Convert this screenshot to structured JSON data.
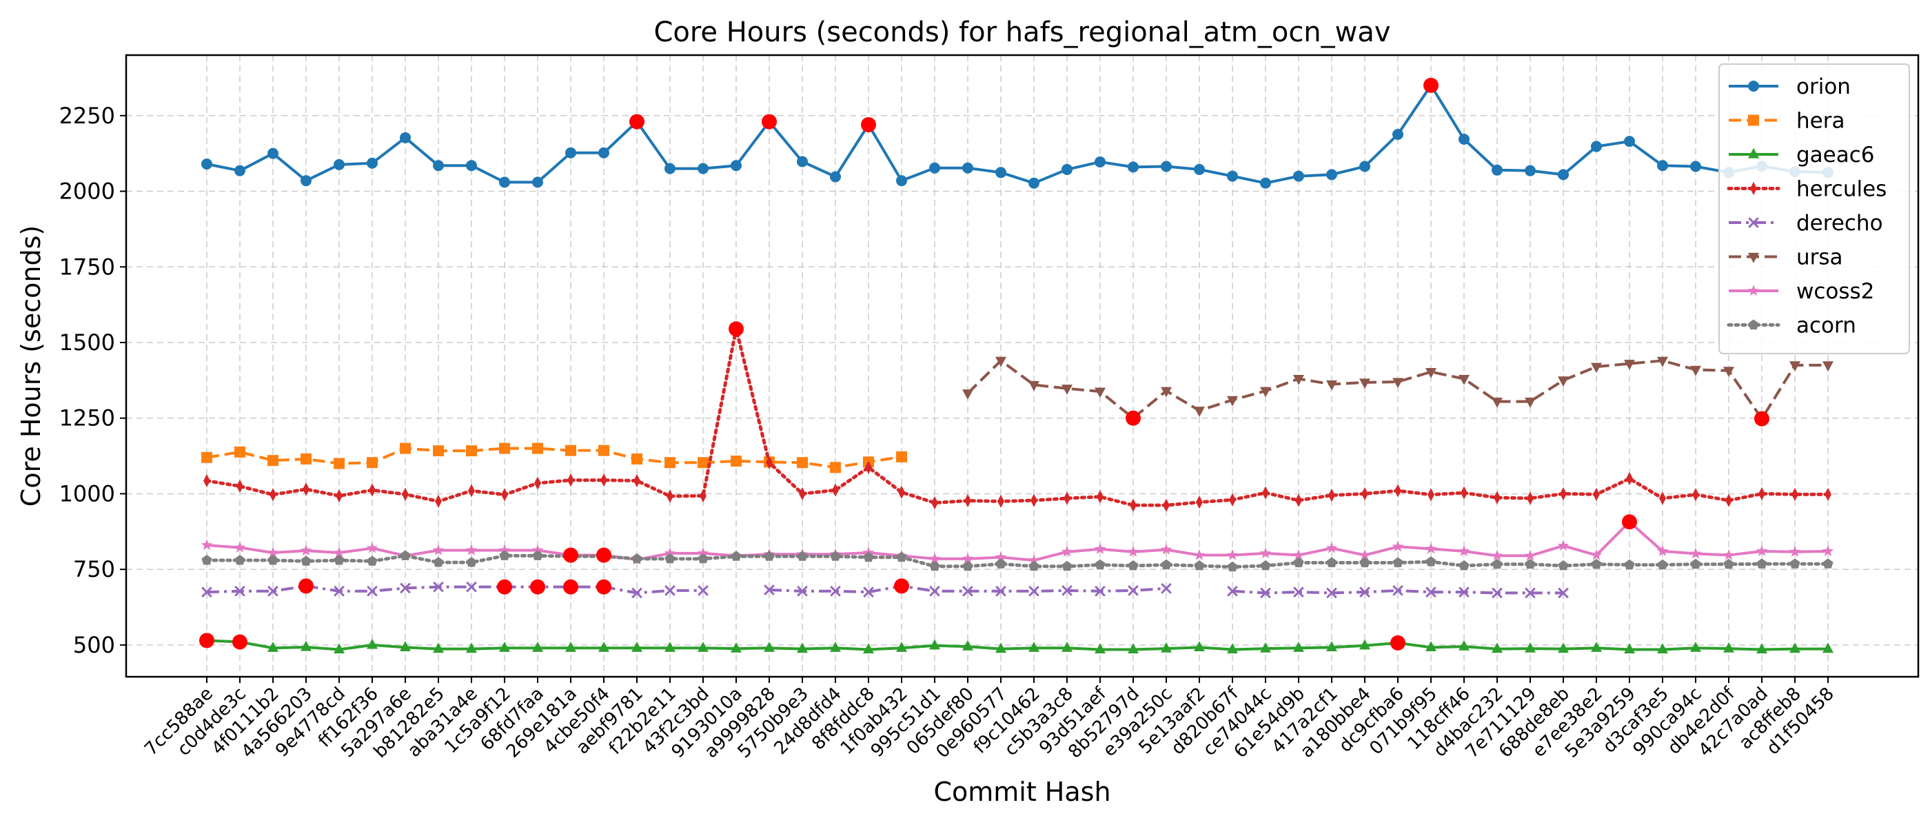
{
  "chart_data": {
    "type": "line",
    "title": "Core Hours (seconds) for hafs_regional_atm_ocn_wav",
    "xlabel": "Commit Hash",
    "ylabel": "Core Hours (seconds)",
    "ylim": [
      395,
      2450
    ],
    "yticks": [
      500,
      750,
      1000,
      1250,
      1500,
      1750,
      2000,
      2250
    ],
    "grid": true,
    "legend_position": "top-right",
    "categories": [
      "7cc588ae",
      "c0d4de3c",
      "4f0111b2",
      "4a566203",
      "9e4778cd",
      "ff162f36",
      "5a297a6e",
      "b81282e5",
      "aba31a4e",
      "1c5a9f12",
      "68fd7faa",
      "269e181a",
      "4cbe50f4",
      "aebf9781",
      "f22b2e11",
      "43f2c3bd",
      "9193010a",
      "a9999828",
      "5750b9e3",
      "24d8dfd4",
      "8f8fddc8",
      "1f0ab432",
      "995c51d1",
      "065def80",
      "0e960577",
      "f9c10462",
      "c5b3a3c8",
      "93d51aef",
      "8b52797d",
      "e39a250c",
      "5e13aaf2",
      "d820b67f",
      "ce74044c",
      "61e54d9b",
      "417a2cf1",
      "a180bbe4",
      "dc9cfba6",
      "071b9f95",
      "118cff46",
      "d4bac232",
      "7e711129",
      "688de8eb",
      "e7ee38e2",
      "5e3a9259",
      "d3caf3e5",
      "990ca94c",
      "db4e2d0f",
      "42c7a0ad",
      "ac8ffeb8",
      "d1f50458"
    ],
    "outlier_color": "#ff0000",
    "series": [
      {
        "name": "orion",
        "color": "#1f77b4",
        "marker": "circle",
        "dash": "solid",
        "values": [
          2090,
          2068,
          2125,
          2035,
          2088,
          2093,
          2177,
          2085,
          2085,
          2030,
          2030,
          2127,
          2127,
          2230,
          2075,
          2075,
          2085,
          2230,
          2098,
          2048,
          2220,
          2035,
          2077,
          2077,
          2062,
          2027,
          2072,
          2097,
          2080,
          2082,
          2072,
          2050,
          2027,
          2050,
          2055,
          2082,
          2188,
          2350,
          2172,
          2070,
          2068,
          2055,
          2148,
          2165,
          2085,
          2082,
          2062,
          2083,
          2065,
          2062
        ],
        "outliers": [
          13,
          17,
          20,
          37
        ]
      },
      {
        "name": "hera",
        "color": "#ff7f0e",
        "marker": "square",
        "dash": "dashed",
        "values": [
          1120,
          1138,
          1110,
          1115,
          1100,
          1103,
          1150,
          1142,
          1142,
          1150,
          1150,
          1143,
          1143,
          1115,
          1103,
          1103,
          1108,
          1105,
          1103,
          1087,
          1105,
          1122,
          null,
          null,
          null,
          null,
          null,
          null,
          null,
          null,
          null,
          null,
          null,
          null,
          null,
          null,
          null,
          null,
          null,
          null,
          null,
          null,
          null,
          null,
          null,
          null,
          null,
          null,
          null,
          null
        ],
        "outliers": []
      },
      {
        "name": "gaeac6",
        "color": "#2ca02c",
        "marker": "triangle-up",
        "dash": "solid",
        "values": [
          515,
          510,
          490,
          493,
          485,
          500,
          492,
          487,
          487,
          490,
          490,
          490,
          490,
          490,
          490,
          490,
          488,
          490,
          487,
          490,
          485,
          490,
          498,
          495,
          487,
          490,
          490,
          485,
          485,
          488,
          492,
          485,
          488,
          490,
          492,
          498,
          507,
          492,
          495,
          487,
          488,
          487,
          490,
          485,
          485,
          490,
          488,
          485,
          487,
          487
        ],
        "outliers": [
          0,
          1,
          36
        ]
      },
      {
        "name": "hercules",
        "color": "#d62728",
        "marker": "thin-diamond",
        "dash": "dotted",
        "values": [
          1043,
          1025,
          997,
          1015,
          993,
          1012,
          998,
          975,
          1010,
          997,
          1035,
          1045,
          1045,
          1043,
          992,
          993,
          1545,
          1103,
          1000,
          1012,
          1087,
          1005,
          970,
          977,
          975,
          978,
          985,
          990,
          962,
          962,
          972,
          980,
          1003,
          978,
          995,
          1000,
          1010,
          997,
          1003,
          987,
          985,
          1000,
          998,
          1050,
          985,
          997,
          978,
          1000,
          998,
          998
        ],
        "outliers": [
          16
        ]
      },
      {
        "name": "derecho",
        "color": "#9467bd",
        "marker": "x",
        "dash": "dashdot",
        "values": [
          675,
          678,
          678,
          695,
          678,
          678,
          688,
          692,
          692,
          692,
          692,
          692,
          692,
          672,
          680,
          680,
          null,
          682,
          678,
          678,
          675,
          695,
          678,
          678,
          678,
          678,
          680,
          678,
          680,
          687,
          null,
          678,
          672,
          675,
          672,
          675,
          680,
          675,
          675,
          672,
          672,
          672,
          null,
          null,
          null,
          null,
          null,
          null,
          null,
          null
        ],
        "outliers": [
          3,
          9,
          10,
          11,
          12,
          21
        ]
      },
      {
        "name": "ursa",
        "color": "#8c564b",
        "marker": "triangle-down",
        "dash": "dashed",
        "values": [
          null,
          null,
          null,
          null,
          null,
          null,
          null,
          null,
          null,
          null,
          null,
          null,
          null,
          null,
          null,
          null,
          null,
          null,
          null,
          null,
          null,
          null,
          null,
          1332,
          1440,
          1360,
          1348,
          1338,
          1250,
          1340,
          1275,
          1310,
          1340,
          1380,
          1362,
          1368,
          1370,
          1403,
          1380,
          1305,
          1305,
          1375,
          1420,
          1430,
          1440,
          1410,
          1407,
          1248,
          1425,
          1425
        ],
        "outliers": [
          28,
          47
        ]
      },
      {
        "name": "wcoss2",
        "color": "#e377c2",
        "marker": "star",
        "dash": "solid",
        "values": [
          830,
          822,
          805,
          812,
          805,
          820,
          795,
          813,
          813,
          813,
          813,
          797,
          797,
          782,
          803,
          803,
          795,
          800,
          800,
          800,
          805,
          795,
          785,
          785,
          790,
          780,
          808,
          817,
          808,
          815,
          797,
          797,
          803,
          797,
          820,
          797,
          825,
          818,
          810,
          795,
          795,
          828,
          797,
          907,
          810,
          802,
          797,
          810,
          808,
          810
        ],
        "outliers": [
          11,
          12,
          43
        ]
      },
      {
        "name": "acorn",
        "color": "#7f7f7f",
        "marker": "pentagon",
        "dash": "dotted",
        "values": [
          780,
          780,
          780,
          777,
          780,
          777,
          795,
          773,
          773,
          795,
          795,
          793,
          793,
          785,
          785,
          785,
          793,
          793,
          793,
          793,
          790,
          790,
          760,
          760,
          768,
          760,
          760,
          765,
          762,
          765,
          762,
          758,
          762,
          772,
          772,
          772,
          772,
          775,
          762,
          767,
          767,
          762,
          767,
          765,
          765,
          767,
          767,
          768,
          768,
          768
        ],
        "outliers": []
      }
    ]
  }
}
